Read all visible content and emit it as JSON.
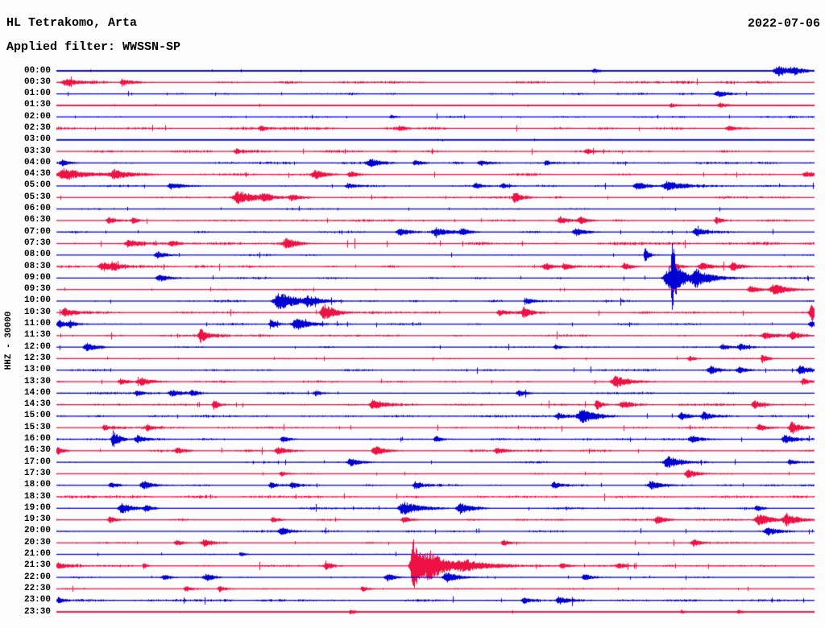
{
  "header": {
    "station": "HL Tetrakomo, Arta",
    "date": "2022-07-06",
    "filter_label": "Applied filter: WWSSN-SP"
  },
  "y_axis_label": "HHZ - 30000",
  "colors": {
    "blue": "#0000d2",
    "red": "#ee1144",
    "background": "#fcfcfc",
    "text": "#000000"
  },
  "chart_data": {
    "type": "line",
    "subtype": "helicorder-seismogram",
    "title": "HL Tetrakomo, Arta",
    "date": "2022-07-06",
    "filter": "WWSSN-SP",
    "ylabel": "HHZ - 30000",
    "row_duration_minutes": 30,
    "start_time": "00:00",
    "end_time": "23:59",
    "legend": "rows alternate blue (on the hour) and red (on the half hour); events given as [position fraction of 30-min row, amplitude px, width px]",
    "rows": [
      {
        "time": "00:00",
        "color": "blue",
        "noise": 0.45,
        "events": [
          [
            0.71,
            2.5,
            5
          ],
          [
            0.954,
            6,
            9
          ],
          [
            0.975,
            3,
            5
          ]
        ]
      },
      {
        "time": "00:30",
        "color": "red",
        "noise": 1.15,
        "events": [
          [
            0.013,
            4,
            7
          ],
          [
            0.088,
            3.5,
            6
          ]
        ]
      },
      {
        "time": "01:00",
        "color": "blue",
        "noise": 0.9,
        "events": [
          [
            0.874,
            3.5,
            7
          ]
        ]
      },
      {
        "time": "01:30",
        "color": "red",
        "noise": 0.5,
        "events": [
          [
            0.812,
            2.5,
            5
          ],
          [
            0.876,
            3,
            6
          ]
        ]
      },
      {
        "time": "02:00",
        "color": "blue",
        "noise": 0.85,
        "events": [
          [
            0.442,
            2,
            4
          ]
        ]
      },
      {
        "time": "02:30",
        "color": "red",
        "noise": 1.2,
        "events": [
          [
            0.27,
            2.5,
            4
          ],
          [
            0.453,
            2.5,
            4
          ],
          [
            0.887,
            3,
            5
          ]
        ]
      },
      {
        "time": "03:00",
        "color": "blue",
        "noise": 0.45,
        "events": []
      },
      {
        "time": "03:30",
        "color": "red",
        "noise": 1.15,
        "events": [
          [
            0.238,
            2.5,
            4
          ],
          [
            0.7,
            2.5,
            4
          ]
        ]
      },
      {
        "time": "04:00",
        "color": "blue",
        "noise": 1.05,
        "events": [
          [
            0.008,
            3,
            4
          ],
          [
            0.415,
            4.5,
            8
          ],
          [
            0.474,
            3,
            5
          ],
          [
            0.56,
            3,
            6
          ],
          [
            0.646,
            2.5,
            4
          ]
        ]
      },
      {
        "time": "04:30",
        "color": "red",
        "noise": 1.0,
        "events": [
          [
            0.011,
            7,
            12
          ],
          [
            0.077,
            5,
            9
          ],
          [
            0.342,
            5,
            7
          ],
          [
            0.388,
            3.5,
            5
          ],
          [
            0.989,
            3,
            5
          ]
        ]
      },
      {
        "time": "05:00",
        "color": "blue",
        "noise": 0.95,
        "events": [
          [
            0.152,
            4,
            7
          ],
          [
            0.385,
            3.5,
            5
          ],
          [
            0.553,
            3,
            4
          ],
          [
            0.589,
            3,
            4
          ],
          [
            0.767,
            4,
            7
          ],
          [
            0.807,
            5.5,
            8
          ]
        ]
      },
      {
        "time": "05:30",
        "color": "red",
        "noise": 1.05,
        "events": [
          [
            0.24,
            7,
            9
          ],
          [
            0.273,
            4,
            5
          ],
          [
            0.31,
            3.5,
            5
          ],
          [
            0.605,
            6,
            4
          ]
        ]
      },
      {
        "time": "06:00",
        "color": "blue",
        "noise": 0.7,
        "events": []
      },
      {
        "time": "06:30",
        "color": "red",
        "noise": 1.05,
        "events": [
          [
            0.069,
            3.5,
            5
          ],
          [
            0.101,
            3,
            4
          ],
          [
            0.665,
            4,
            5
          ],
          [
            0.692,
            3.5,
            5
          ],
          [
            0.871,
            4,
            3
          ]
        ]
      },
      {
        "time": "07:00",
        "color": "blue",
        "noise": 0.95,
        "events": [
          [
            0.453,
            4,
            6
          ],
          [
            0.501,
            4.5,
            8
          ],
          [
            0.535,
            3.5,
            5
          ],
          [
            0.686,
            4,
            6
          ],
          [
            0.844,
            4,
            6
          ]
        ]
      },
      {
        "time": "07:30",
        "color": "red",
        "noise": 1.3,
        "events": [
          [
            0.095,
            4,
            6
          ],
          [
            0.152,
            3.5,
            5
          ],
          [
            0.303,
            5,
            7
          ]
        ]
      },
      {
        "time": "08:00",
        "color": "blue",
        "noise": 0.8,
        "events": [
          [
            0.134,
            4,
            6
          ],
          [
            0.777,
            8,
            2
          ]
        ]
      },
      {
        "time": "08:30",
        "color": "red",
        "noise": 1.15,
        "events": [
          [
            0.061,
            5,
            7
          ],
          [
            0.074,
            4,
            4
          ],
          [
            0.646,
            4,
            6
          ],
          [
            0.671,
            3.5,
            5
          ],
          [
            0.75,
            4,
            5
          ],
          [
            0.814,
            4,
            6
          ],
          [
            0.853,
            4,
            7
          ],
          [
            0.893,
            4.5,
            6
          ]
        ]
      },
      {
        "time": "09:00",
        "color": "blue",
        "noise": 0.95,
        "events": [
          [
            0.136,
            4,
            6
          ],
          [
            0.81,
            13,
            10
          ],
          [
            0.813,
            34,
            2
          ],
          [
            0.845,
            8,
            8
          ]
        ]
      },
      {
        "time": "09:30",
        "color": "red",
        "noise": 0.75,
        "events": [
          [
            0.917,
            4,
            6
          ],
          [
            0.948,
            6,
            8
          ]
        ]
      },
      {
        "time": "10:00",
        "color": "blue",
        "noise": 1.0,
        "events": [
          [
            0.295,
            9,
            11
          ],
          [
            0.332,
            5,
            6
          ],
          [
            0.621,
            3.5,
            5
          ]
        ]
      },
      {
        "time": "10:30",
        "color": "red",
        "noise": 1.0,
        "events": [
          [
            0.011,
            5,
            6
          ],
          [
            0.354,
            9,
            7
          ],
          [
            0.585,
            3.5,
            5
          ],
          [
            0.617,
            6,
            4
          ],
          [
            0.998,
            10,
            5
          ]
        ]
      },
      {
        "time": "11:00",
        "color": "blue",
        "noise": 0.9,
        "events": [
          [
            0.004,
            4,
            5
          ],
          [
            0.018,
            3,
            4
          ],
          [
            0.284,
            4,
            5
          ],
          [
            0.317,
            7,
            7
          ],
          [
            0.996,
            4,
            4
          ]
        ]
      },
      {
        "time": "11:30",
        "color": "red",
        "noise": 1.1,
        "events": [
          [
            0.19,
            8,
            4
          ],
          [
            0.936,
            4,
            6
          ],
          [
            0.971,
            4,
            5
          ]
        ]
      },
      {
        "time": "12:00",
        "color": "blue",
        "noise": 0.8,
        "events": [
          [
            0.04,
            4.5,
            6
          ],
          [
            0.659,
            3,
            4
          ],
          [
            0.88,
            3.5,
            5
          ],
          [
            0.903,
            3.5,
            5
          ]
        ]
      },
      {
        "time": "12:30",
        "color": "red",
        "noise": 0.6,
        "events": [
          [
            0.836,
            3,
            4
          ],
          [
            0.932,
            5,
            3
          ]
        ]
      },
      {
        "time": "13:00",
        "color": "blue",
        "noise": 1.0,
        "events": [
          [
            0.864,
            4,
            6
          ],
          [
            0.901,
            3.5,
            5
          ],
          [
            0.982,
            4.5,
            6
          ]
        ]
      },
      {
        "time": "13:30",
        "color": "red",
        "noise": 0.9,
        "events": [
          [
            0.085,
            3.5,
            5
          ],
          [
            0.112,
            4,
            6
          ],
          [
            0.739,
            6.5,
            8
          ],
          [
            0.986,
            4,
            5
          ]
        ]
      },
      {
        "time": "14:00",
        "color": "blue",
        "noise": 0.95,
        "events": [
          [
            0.106,
            3,
            4
          ],
          [
            0.152,
            3.5,
            5
          ],
          [
            0.179,
            3,
            4
          ],
          [
            0.342,
            3,
            4
          ],
          [
            0.611,
            3.5,
            5
          ]
        ]
      },
      {
        "time": "14:30",
        "color": "red",
        "noise": 1.0,
        "events": [
          [
            0.208,
            6,
            3
          ],
          [
            0.418,
            6,
            6
          ],
          [
            0.713,
            7,
            3
          ],
          [
            0.748,
            4,
            5
          ],
          [
            0.922,
            4.5,
            6
          ]
        ]
      },
      {
        "time": "15:00",
        "color": "blue",
        "noise": 1.05,
        "events": [
          [
            0.662,
            4,
            5
          ],
          [
            0.694,
            8,
            7
          ],
          [
            0.825,
            4,
            5
          ],
          [
            0.855,
            4.5,
            5
          ]
        ]
      },
      {
        "time": "15:30",
        "color": "red",
        "noise": 1.0,
        "events": [
          [
            0.063,
            3.5,
            4
          ],
          [
            0.12,
            3,
            4
          ],
          [
            0.928,
            4,
            5
          ],
          [
            0.971,
            7,
            5
          ]
        ]
      },
      {
        "time": "16:00",
        "color": "blue",
        "noise": 0.9,
        "events": [
          [
            0.075,
            10,
            4
          ],
          [
            0.107,
            4,
            6
          ],
          [
            0.299,
            3.5,
            5
          ],
          [
            0.501,
            3.5,
            4
          ],
          [
            0.839,
            4,
            5
          ],
          [
            0.962,
            5,
            6
          ]
        ]
      },
      {
        "time": "16:30",
        "color": "red",
        "noise": 1.05,
        "events": [
          [
            0.002,
            4,
            4
          ],
          [
            0.16,
            3.5,
            5
          ],
          [
            0.292,
            4,
            5
          ],
          [
            0.421,
            5,
            6
          ],
          [
            0.582,
            4,
            5
          ]
        ]
      },
      {
        "time": "17:00",
        "color": "blue",
        "noise": 0.8,
        "events": [
          [
            0.388,
            4.5,
            6
          ],
          [
            0.807,
            7,
            7
          ],
          [
            0.968,
            3,
            4
          ]
        ]
      },
      {
        "time": "17:30",
        "color": "red",
        "noise": 0.65,
        "events": [
          [
            0.297,
            3,
            4
          ],
          [
            0.834,
            5,
            6
          ]
        ]
      },
      {
        "time": "18:00",
        "color": "blue",
        "noise": 0.9,
        "events": [
          [
            0.072,
            3,
            4
          ],
          [
            0.115,
            5,
            6
          ],
          [
            0.283,
            3.5,
            4
          ],
          [
            0.311,
            3,
            4
          ],
          [
            0.474,
            4.5,
            5
          ],
          [
            0.657,
            4,
            5
          ],
          [
            0.785,
            5,
            6
          ]
        ]
      },
      {
        "time": "18:30",
        "color": "red",
        "noise": 1.25,
        "events": []
      },
      {
        "time": "19:00",
        "color": "blue",
        "noise": 0.9,
        "events": [
          [
            0.086,
            6,
            6
          ],
          [
            0.118,
            3.5,
            4
          ],
          [
            0.458,
            8,
            8
          ],
          [
            0.533,
            6,
            6
          ],
          [
            0.925,
            3,
            4
          ]
        ]
      },
      {
        "time": "19:30",
        "color": "red",
        "noise": 1.0,
        "events": [
          [
            0.07,
            3.5,
            4
          ],
          [
            0.286,
            3.5,
            4
          ],
          [
            0.458,
            4,
            5
          ],
          [
            0.793,
            4.5,
            5
          ],
          [
            0.928,
            7,
            7
          ],
          [
            0.964,
            6,
            6
          ]
        ]
      },
      {
        "time": "20:00",
        "color": "blue",
        "noise": 1.0,
        "events": [
          [
            0.297,
            4.5,
            5
          ],
          [
            0.939,
            4,
            6
          ]
        ]
      },
      {
        "time": "20:30",
        "color": "red",
        "noise": 0.8,
        "events": [
          [
            0.158,
            3.5,
            4
          ],
          [
            0.195,
            4,
            5
          ],
          [
            0.59,
            3.5,
            4
          ],
          [
            0.841,
            4,
            4
          ]
        ]
      },
      {
        "time": "21:00",
        "color": "blue",
        "noise": 0.6,
        "events": [
          [
            0.244,
            2.5,
            3
          ]
        ]
      },
      {
        "time": "21:30",
        "color": "red",
        "noise": 1.0,
        "events": [
          [
            0.002,
            4,
            5
          ],
          [
            0.115,
            4,
            2
          ],
          [
            0.356,
            5,
            3
          ],
          [
            0.472,
            32,
            6
          ],
          [
            0.495,
            10,
            12
          ],
          [
            0.54,
            5,
            16
          ],
          [
            0.667,
            3,
            4
          ],
          [
            0.742,
            3,
            4
          ]
        ]
      },
      {
        "time": "22:00",
        "color": "blue",
        "noise": 0.7,
        "events": [
          [
            0.142,
            3,
            4
          ],
          [
            0.198,
            4,
            5
          ],
          [
            0.437,
            4.5,
            5
          ],
          [
            0.515,
            6,
            6
          ],
          [
            0.697,
            4,
            4
          ]
        ]
      },
      {
        "time": "22:30",
        "color": "red",
        "noise": 0.7,
        "events": [
          [
            0.171,
            3,
            4
          ],
          [
            0.215,
            3.5,
            4
          ],
          [
            0.404,
            3,
            4
          ]
        ]
      },
      {
        "time": "23:00",
        "color": "blue",
        "noise": 1.1,
        "events": [
          [
            0.002,
            4,
            3
          ],
          [
            0.617,
            3.5,
            4
          ],
          [
            0.664,
            4.5,
            6
          ]
        ]
      },
      {
        "time": "23:30",
        "color": "red",
        "noise": 0.55,
        "events": [
          [
            0.388,
            3,
            4
          ],
          [
            0.825,
            2.5,
            3
          ],
          [
            0.9,
            2.5,
            3
          ]
        ]
      }
    ]
  }
}
